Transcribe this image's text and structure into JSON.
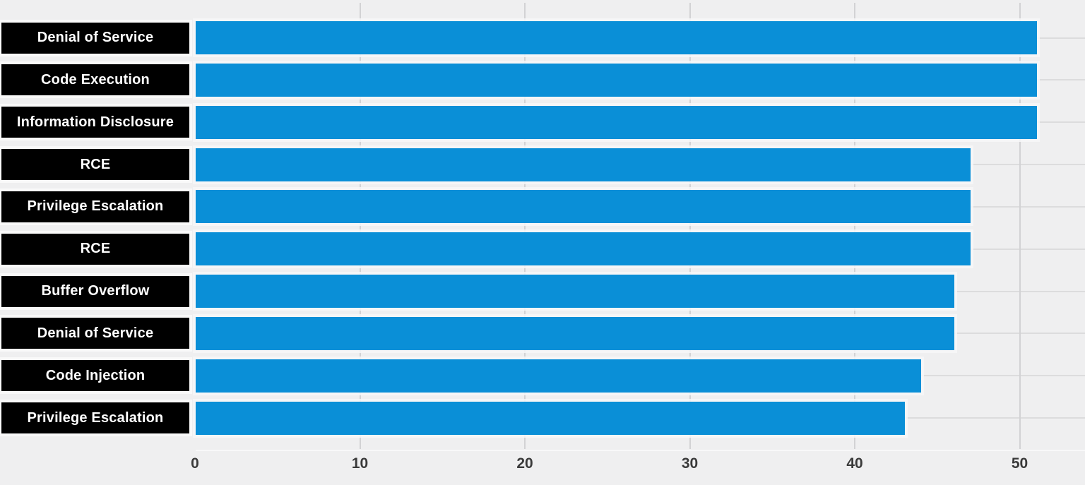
{
  "chart_data": {
    "type": "bar",
    "orientation": "horizontal",
    "title": "",
    "xlabel": "",
    "ylabel": "",
    "categories": [
      "Denial of Service",
      "Code Execution",
      "Information Disclosure",
      "RCE",
      "Privilege Escalation",
      "RCE",
      "Buffer Overflow",
      "Denial of Service",
      "Code Injection",
      "Privilege Escalation"
    ],
    "values": [
      51,
      51,
      51,
      47,
      47,
      47,
      46,
      46,
      44,
      43
    ],
    "xticks": [
      0,
      10,
      20,
      30,
      40,
      50
    ],
    "xlim": [
      0,
      54
    ],
    "grid": "vertical-gridlines-plus-faint-row-lines",
    "legend": "none",
    "colors": {
      "bar": "#0a8fd7",
      "category_box_bg": "#000000",
      "category_box_text": "#ffffff",
      "background": "#efeff0",
      "gridline": "#d2d2d4",
      "row_line": "#dcdcdd",
      "tick_text": "#3a3a3a"
    }
  }
}
